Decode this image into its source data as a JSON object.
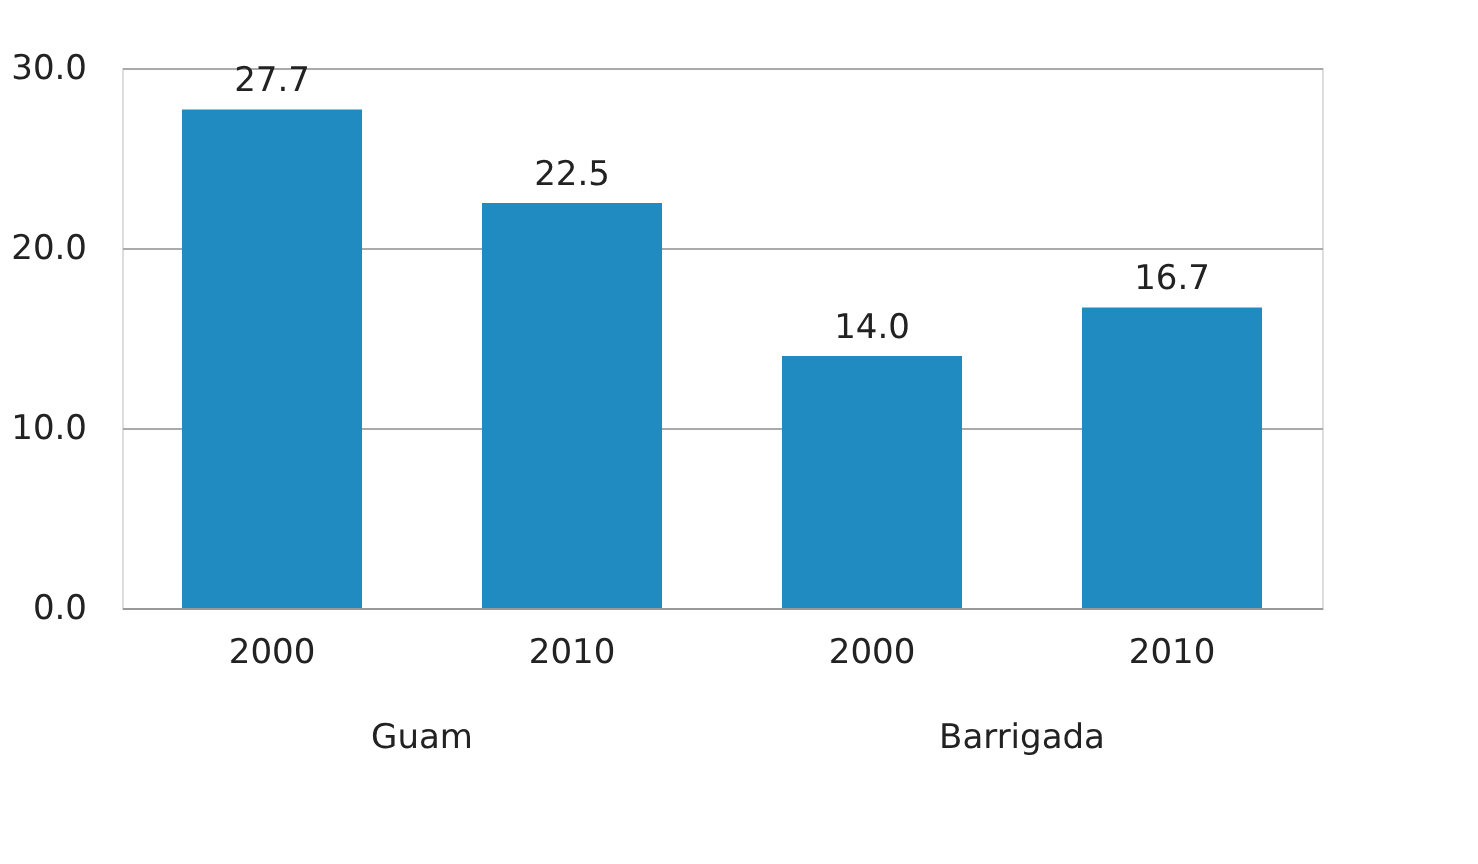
{
  "chart_data": {
    "type": "bar",
    "categories": [
      "2000",
      "2010",
      "2000",
      "2010"
    ],
    "values": [
      27.7,
      22.5,
      14.0,
      16.7
    ],
    "color": "#1f8bc0",
    "ylim": [
      0,
      30
    ],
    "yticks": [
      {
        "value": 0,
        "label": "0.0"
      },
      {
        "value": 10,
        "label": "10.0"
      },
      {
        "value": 20,
        "label": "20.0"
      },
      {
        "value": 30,
        "label": "30.0"
      }
    ],
    "grid": "y",
    "value_labels": [
      "27.7",
      "22.5",
      "14.0",
      "16.7"
    ],
    "annotations": [
      "Guam",
      "Barrigada"
    ]
  }
}
